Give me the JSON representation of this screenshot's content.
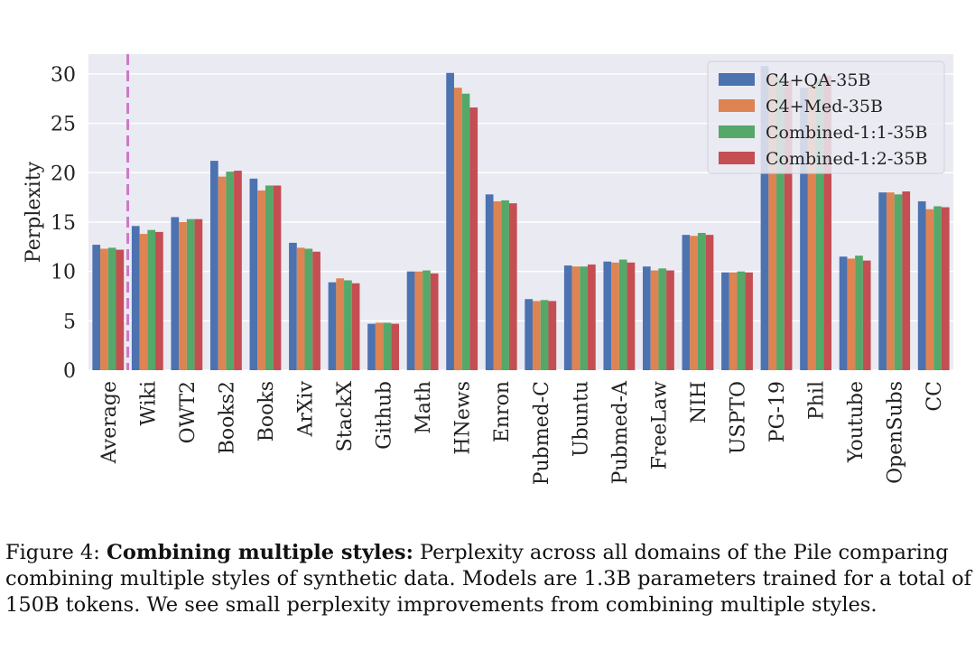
{
  "chart_data": {
    "type": "bar",
    "title": "",
    "xlabel": "",
    "ylabel": "Perplexity",
    "ylim": [
      0,
      32
    ],
    "yticks": [
      0,
      5,
      10,
      15,
      20,
      25,
      30
    ],
    "grid": true,
    "legend_position": "top-right",
    "divider_after_category": "Average",
    "categories": [
      "Average",
      "Wiki",
      "OWT2",
      "Books2",
      "Books",
      "ArXiv",
      "StackX",
      "Github",
      "Math",
      "HNews",
      "Enron",
      "Pubmed-C",
      "Ubuntu",
      "Pubmed-A",
      "FreeLaw",
      "NIH",
      "USPTO",
      "PG-19",
      "Phil",
      "Youtube",
      "OpenSubs",
      "CC"
    ],
    "series": [
      {
        "name": "C4+QA-35B",
        "color": "#4c72b0",
        "values": [
          12.7,
          14.6,
          15.5,
          21.2,
          19.4,
          12.9,
          8.9,
          4.7,
          10.0,
          30.1,
          17.8,
          7.2,
          10.6,
          11.0,
          10.5,
          13.7,
          9.9,
          30.8,
          28.6,
          11.5,
          18.0,
          17.1
        ]
      },
      {
        "name": "C4+Med-35B",
        "color": "#dd8452",
        "values": [
          12.3,
          13.8,
          15.0,
          19.6,
          18.2,
          12.4,
          9.3,
          4.8,
          10.0,
          28.6,
          17.1,
          7.0,
          10.5,
          10.9,
          10.1,
          13.6,
          9.9,
          30.0,
          29.0,
          11.3,
          18.0,
          16.3
        ]
      },
      {
        "name": "Combined-1:1-35B",
        "color": "#55a868",
        "values": [
          12.4,
          14.2,
          15.3,
          20.1,
          18.7,
          12.3,
          9.1,
          4.8,
          10.1,
          28.0,
          17.2,
          7.1,
          10.5,
          11.2,
          10.3,
          13.9,
          10.0,
          29.6,
          29.5,
          11.6,
          17.8,
          16.6
        ]
      },
      {
        "name": "Combined-1:2-35B",
        "color": "#c44e52",
        "values": [
          12.2,
          14.0,
          15.3,
          20.2,
          18.7,
          12.0,
          8.8,
          4.7,
          9.8,
          26.6,
          16.9,
          7.0,
          10.7,
          10.9,
          10.1,
          13.7,
          9.9,
          29.3,
          29.8,
          11.1,
          18.1,
          16.5
        ]
      }
    ]
  },
  "caption": {
    "prefix": "Figure 4: ",
    "bold": "Combining multiple styles:",
    "text": " Perplexity across all domains of the Pile comparing combining multiple styles of synthetic data. Models are 1.3B parameters trained for a total of 150B tokens. We see small perplexity improvements from combining multiple styles."
  }
}
